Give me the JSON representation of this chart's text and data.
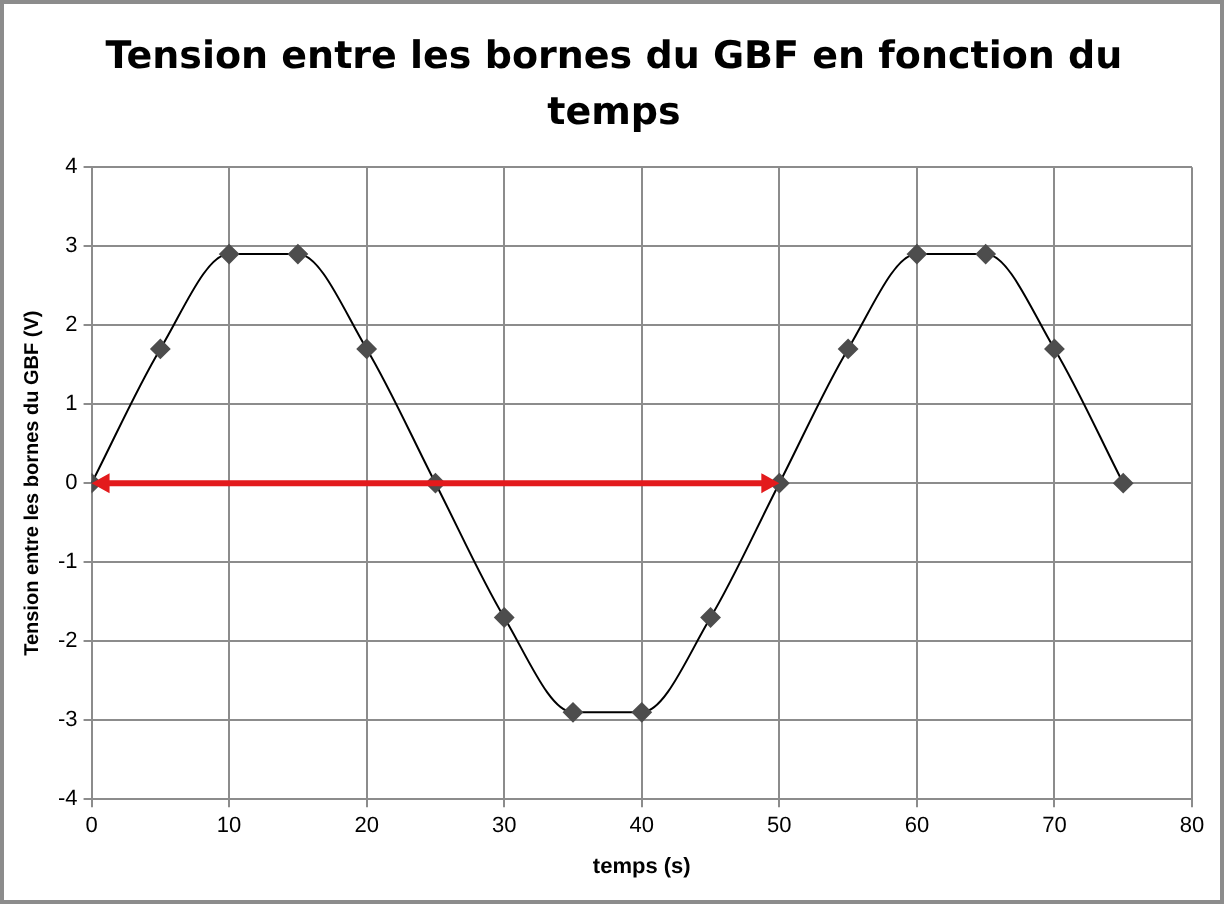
{
  "chart_data": {
    "type": "line",
    "title": "Tension entre les bornes du GBF en fonction du temps",
    "xlabel": "temps (s)",
    "ylabel": "Tension entre les bornes du GBF (V)",
    "x": [
      0,
      5,
      10,
      15,
      20,
      25,
      30,
      35,
      40,
      45,
      50,
      55,
      60,
      65,
      70,
      75
    ],
    "series": [
      {
        "color": "#000000",
        "values": [
          0,
          1.7,
          2.9,
          2.9,
          1.7,
          0,
          -1.7,
          -2.9,
          -2.9,
          -1.7,
          0,
          1.7,
          2.9,
          2.9,
          1.7,
          0
        ]
      }
    ],
    "xlim": [
      0,
      80
    ],
    "xticks": [
      0,
      10,
      20,
      30,
      40,
      50,
      60,
      70,
      80
    ],
    "ylim": [
      -4,
      4
    ],
    "yticks": [
      -4,
      -3,
      -2,
      -1,
      0,
      1,
      2,
      3,
      4
    ],
    "grid": true,
    "legend": false,
    "marker": "diamond",
    "line_style": "solid"
  }
}
